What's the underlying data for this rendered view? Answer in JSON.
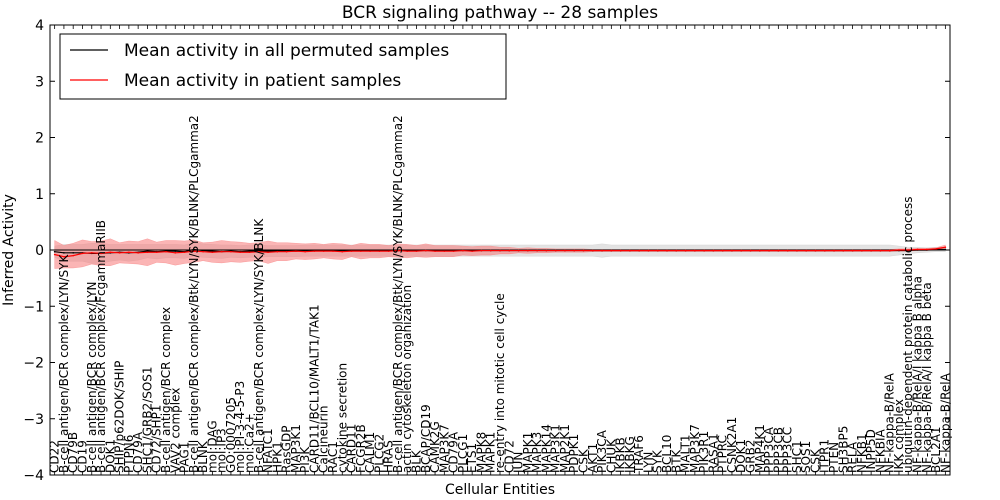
{
  "chart_data": {
    "type": "line",
    "title": "BCR signaling pathway -- 28 samples",
    "xlabel": "Cellular Entities",
    "ylabel": "Inferred Activity",
    "ylim": [
      -4,
      4
    ],
    "yticks": [
      4,
      3,
      2,
      1,
      0,
      -1,
      -2,
      -3,
      -4
    ],
    "legend_position": "top-left",
    "categories": [
      "CD22",
      "B-cell antigen/BCR complex/LYN/SYK",
      "CD79B",
      "CD19",
      "B-cell antigen/BCR complex/LYN",
      "B-cell antigen/BCR complex/FcgammaRIIB",
      "DOK1",
      "SHIP/p62DOK/SHIP",
      "PTPN6",
      "CD79A",
      "SHC1/GRB2/SOS1",
      "CD72/SHP1",
      "B-cell antigen/BCR complex",
      "VAV2 complex",
      "PAG1",
      "B-cell antigen/BCR complex/Btk/LYN/SYK/BLNK/PLCgamma2",
      "BLNK",
      "mol:DAG",
      "mol:IP3",
      "GO:0007205",
      "mol:PI-3-4-5-P3",
      "mol:Ca2+",
      "B-cell antigen/BCR complex/LYN/SYK/BLNK",
      "NFATC1",
      "HPK1",
      "RasGDP",
      "MAP3K1",
      "PI3K",
      "CARD11/BCL10/MALT1/TAK1",
      "Calcineurin",
      "RAC1",
      "cytokine secretion",
      "CARD11",
      "FCGR2B",
      "CALM1",
      "PLCG2",
      "HRAS",
      "B-cell antigen/BCR complex/Btk/LYN/SYK/BLNK/PLCgamma2",
      "actin cytoskeleton organization",
      "BLK",
      "BCAP/CD19",
      "CAMK2G",
      "MAP3K7",
      "CD79A",
      "PLCG1",
      "ETS1",
      "MAPK8",
      "MAPK1",
      "re-entry into mitotic cell cycle",
      "CD72",
      "JUN",
      "MAPK1",
      "MAPK3",
      "MAPK14",
      "MAP3K1",
      "MAP2K1",
      "PDPK1",
      "CSK",
      "AKT1",
      "PIK3CA",
      "CHUK",
      "IKBKB",
      "IKBKG",
      "TRAF6",
      "LYN",
      "SYK",
      "BCL10",
      "BTK",
      "MALT1",
      "MAP3K7",
      "PIK3R1",
      "RASA1",
      "PTPRC",
      "CSNK2A1",
      "DOK1",
      "GRB2",
      "MAP4K1",
      "PPP3CA",
      "PPP3CB",
      "PPP3CC",
      "SHC1",
      "SOS1",
      "CSK",
      "ITPR1",
      "PTEN",
      "SH3BP5",
      "RELA",
      "NFKB1",
      "INPP5D",
      "NFKBIA",
      "NF-kappa-B/RelA",
      "IKK complex",
      "ubiquitin-dependent protein catabolic process",
      "NF-kappa-B/RelA/I kappa B alpha",
      "NF-kappa-B/RelA/I kappa B beta",
      "BCL2A1",
      "NF-kappa-B/RelA"
    ],
    "series": [
      {
        "name": "Mean activity in all permuted samples",
        "color": "#000000",
        "values": [
          -0.03,
          -0.05,
          -0.05,
          -0.05,
          -0.06,
          -0.06,
          -0.05,
          -0.04,
          -0.05,
          -0.04,
          -0.02,
          -0.03,
          -0.02,
          -0.02,
          -0.03,
          0.01,
          -0.01,
          -0.02,
          -0.03,
          -0.02,
          -0.03,
          -0.02,
          -0.02,
          -0.02,
          -0.02,
          -0.02,
          -0.02,
          -0.01,
          -0.01,
          -0.01,
          -0.01,
          -0.01,
          -0.01,
          -0.01,
          -0.01,
          -0.01,
          -0.01,
          -0.01,
          -0.01,
          -0.01,
          -0.01,
          -0.01,
          -0.01,
          -0.01,
          -0.01,
          -0.01,
          -0.01,
          -0.01,
          -0.01,
          -0.01,
          -0.01,
          -0.01,
          -0.01,
          -0.01,
          -0.01,
          -0.01,
          -0.01,
          -0.01,
          -0.01,
          -0.01,
          -0.01,
          -0.01,
          -0.01,
          -0.01,
          -0.01,
          -0.01,
          -0.01,
          -0.01,
          -0.01,
          -0.01,
          -0.01,
          -0.01,
          -0.01,
          -0.01,
          -0.01,
          -0.01,
          -0.01,
          -0.01,
          -0.01,
          -0.01,
          -0.01,
          -0.01,
          -0.01,
          -0.01,
          -0.01,
          -0.01,
          -0.01,
          -0.01,
          -0.01,
          -0.01,
          -0.01,
          -0.01,
          -0.01,
          0.0,
          0.0,
          0.01,
          0.01
        ],
        "band": [
          0.1,
          0.15,
          0.15,
          0.15,
          0.18,
          0.18,
          0.15,
          0.14,
          0.15,
          0.14,
          0.12,
          0.13,
          0.12,
          0.12,
          0.12,
          0.12,
          0.12,
          0.12,
          0.12,
          0.11,
          0.11,
          0.11,
          0.11,
          0.1,
          0.1,
          0.1,
          0.1,
          0.1,
          0.1,
          0.1,
          0.1,
          0.1,
          0.1,
          0.1,
          0.1,
          0.1,
          0.1,
          0.1,
          0.1,
          0.1,
          0.1,
          0.1,
          0.1,
          0.1,
          0.1,
          0.1,
          0.1,
          0.1,
          0.1,
          0.1,
          0.1,
          0.1,
          0.1,
          0.1,
          0.1,
          0.1,
          0.1,
          0.1,
          0.1,
          0.12,
          0.1,
          0.1,
          0.1,
          0.1,
          0.1,
          0.1,
          0.1,
          0.1,
          0.1,
          0.1,
          0.1,
          0.1,
          0.1,
          0.1,
          0.1,
          0.1,
          0.1,
          0.1,
          0.1,
          0.1,
          0.1,
          0.1,
          0.1,
          0.1,
          0.1,
          0.1,
          0.1,
          0.1,
          0.1,
          0.1,
          0.1,
          0.08,
          0.06,
          0.05,
          0.04,
          0.04,
          0.04
        ]
      },
      {
        "name": "Mean activity in patient samples",
        "color": "#ff0000",
        "values": [
          -0.08,
          -0.12,
          -0.1,
          -0.06,
          -0.05,
          -0.06,
          -0.04,
          -0.05,
          -0.04,
          -0.05,
          -0.04,
          -0.04,
          -0.03,
          -0.05,
          -0.04,
          -0.02,
          -0.03,
          -0.04,
          -0.03,
          -0.03,
          -0.04,
          -0.04,
          -0.03,
          -0.04,
          -0.03,
          -0.03,
          -0.02,
          -0.03,
          -0.02,
          -0.02,
          -0.02,
          -0.03,
          -0.02,
          -0.02,
          -0.02,
          -0.02,
          -0.02,
          -0.01,
          -0.02,
          -0.02,
          -0.01,
          -0.02,
          -0.02,
          -0.02,
          -0.01,
          -0.02,
          -0.01,
          -0.01,
          -0.01,
          -0.01,
          -0.01,
          -0.01,
          -0.01,
          -0.01,
          -0.01,
          -0.01,
          -0.01,
          -0.01,
          -0.01,
          -0.01,
          -0.01,
          -0.01,
          -0.01,
          -0.01,
          -0.01,
          -0.01,
          -0.01,
          -0.01,
          -0.01,
          -0.01,
          -0.01,
          -0.01,
          -0.01,
          -0.01,
          -0.01,
          -0.01,
          -0.01,
          -0.01,
          -0.01,
          -0.01,
          -0.01,
          -0.01,
          -0.01,
          -0.01,
          -0.01,
          -0.01,
          -0.01,
          -0.01,
          -0.01,
          -0.01,
          -0.01,
          0.0,
          0.0,
          0.01,
          0.01,
          0.02,
          0.05
        ],
        "band": [
          0.25,
          0.2,
          0.22,
          0.24,
          0.2,
          0.22,
          0.24,
          0.18,
          0.2,
          0.2,
          0.24,
          0.18,
          0.2,
          0.22,
          0.2,
          0.2,
          0.16,
          0.18,
          0.2,
          0.18,
          0.18,
          0.16,
          0.16,
          0.2,
          0.16,
          0.16,
          0.14,
          0.14,
          0.14,
          0.12,
          0.14,
          0.14,
          0.1,
          0.14,
          0.12,
          0.12,
          0.1,
          0.12,
          0.12,
          0.1,
          0.12,
          0.1,
          0.1,
          0.1,
          0.08,
          0.08,
          0.08,
          0.08,
          0.06,
          0.06,
          0.04,
          0.05,
          0.04,
          0.04,
          0.03,
          0.03,
          0.03,
          0.03,
          0.02,
          0.02,
          0.02,
          0.02,
          0.02,
          0.02,
          0.02,
          0.02,
          0.02,
          0.02,
          0.02,
          0.02,
          0.02,
          0.02,
          0.02,
          0.02,
          0.02,
          0.02,
          0.02,
          0.02,
          0.02,
          0.02,
          0.02,
          0.02,
          0.02,
          0.02,
          0.02,
          0.02,
          0.02,
          0.02,
          0.02,
          0.02,
          0.02,
          0.02,
          0.02,
          0.02,
          0.02,
          0.02,
          0.04
        ]
      }
    ]
  }
}
